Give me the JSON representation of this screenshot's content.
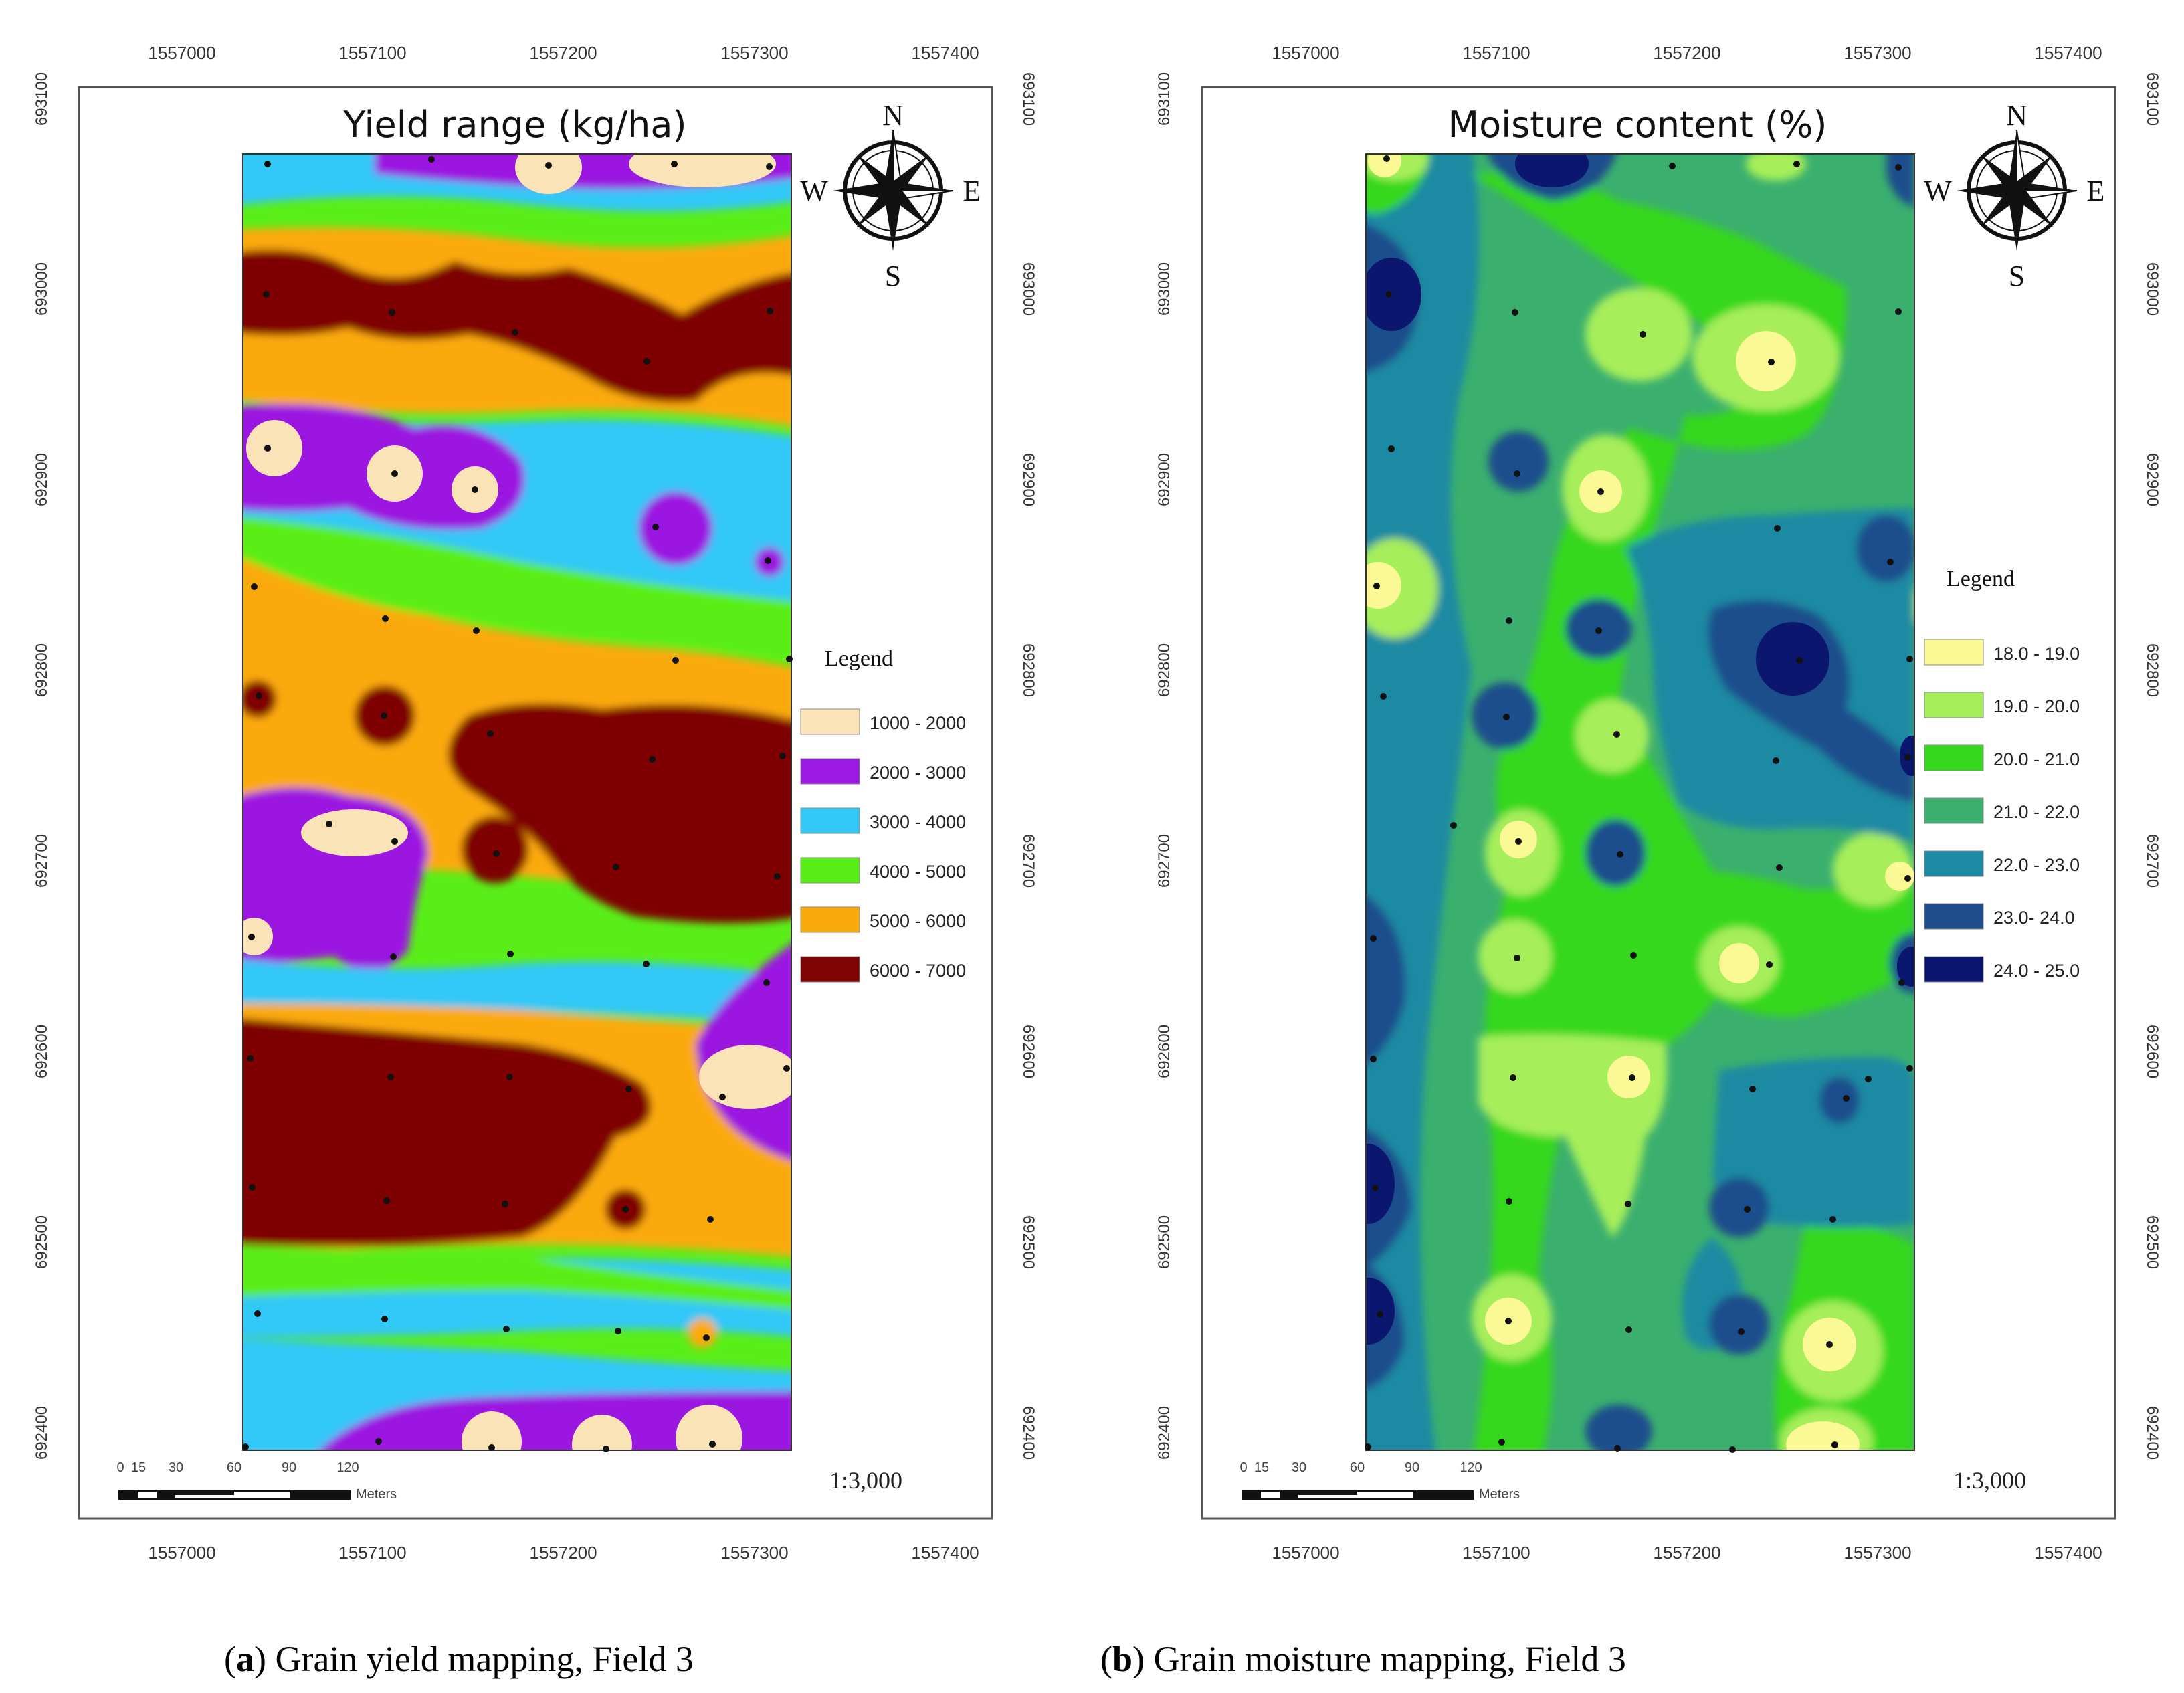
{
  "panels": [
    {
      "id": "a",
      "map_title": "Yield range (kg/ha)",
      "x_ticks": [
        "1557000",
        "1557100",
        "1557200",
        "1557300",
        "1557400"
      ],
      "y_ticks": [
        "693100",
        "693000",
        "692900",
        "692800",
        "692700",
        "692600",
        "692500",
        "692400"
      ],
      "compass": {
        "n": "N",
        "s": "S",
        "e": "E",
        "w": "W"
      },
      "legend_title": "Legend",
      "legend": [
        {
          "label": "1000 - 2000",
          "color": "#fbe3b8"
        },
        {
          "label": "2000 - 3000",
          "color": "#9b19e0"
        },
        {
          "label": "3000 - 4000",
          "color": "#33c8f7"
        },
        {
          "label": "4000 - 5000",
          "color": "#5aee19"
        },
        {
          "label": "5000 - 6000",
          "color": "#fbaa0e"
        },
        {
          "label": "6000 - 7000",
          "color": "#7e0303"
        }
      ],
      "scale": "1:3,000",
      "scalebar_labels": [
        "0",
        "15",
        "30",
        "60",
        "90",
        "120"
      ],
      "scalebar_unit": "Meters",
      "caption_letter": "a",
      "caption_text": "Grain yield mapping, Field 3"
    },
    {
      "id": "b",
      "map_title": "Moisture content (%)",
      "x_ticks": [
        "1557000",
        "1557100",
        "1557200",
        "1557300",
        "1557400"
      ],
      "y_ticks": [
        "693100",
        "693000",
        "692900",
        "692800",
        "692700",
        "692600",
        "692500",
        "692400"
      ],
      "compass": {
        "n": "N",
        "s": "S",
        "e": "E",
        "w": "W"
      },
      "legend_title": "Legend",
      "legend": [
        {
          "label": "18.0 - 19.0",
          "color": "#fbf996"
        },
        {
          "label": "19.0 - 20.0",
          "color": "#a6ee5a"
        },
        {
          "label": "20.0 - 21.0",
          "color": "#36d81f"
        },
        {
          "label": "21.0 - 22.0",
          "color": "#3bb06e"
        },
        {
          "label": "22.0 - 23.0",
          "color": "#1c8aa3"
        },
        {
          "label": "23.0- 24.0",
          "color": "#1e4e8c"
        },
        {
          "label": "24.0 - 25.0",
          "color": "#0b166e"
        }
      ],
      "scale": "1:3,000",
      "scalebar_labels": [
        "0",
        "15",
        "30",
        "60",
        "90",
        "120"
      ],
      "scalebar_unit": "Meters",
      "caption_letter": "b",
      "caption_text": "Grain moisture mapping, Field 3"
    }
  ]
}
